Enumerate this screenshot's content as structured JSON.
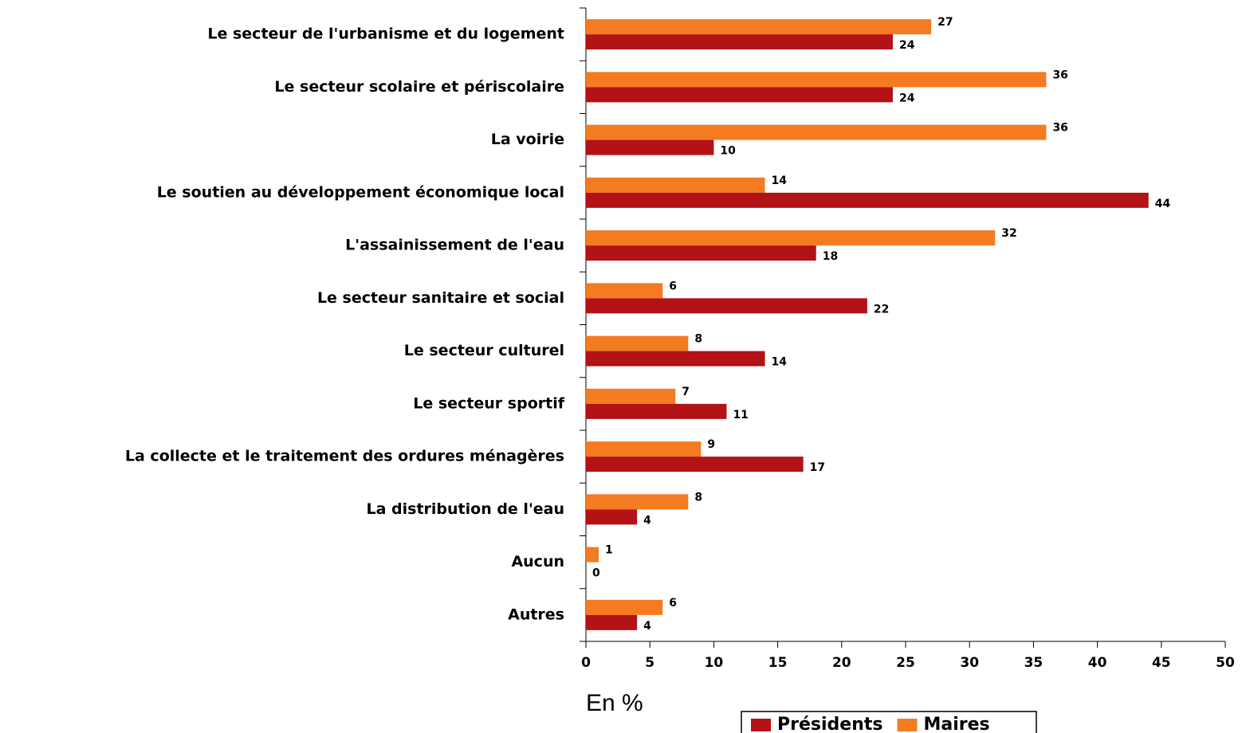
{
  "chart_data": {
    "type": "hbar",
    "xlabel": "En %",
    "categories": [
      "Le secteur de l'urbanisme et du logement",
      "Le secteur scolaire et périscolaire",
      "La voirie",
      "Le soutien au développement économique local",
      "L'assainissement de l'eau",
      "Le secteur sanitaire et social",
      "Le secteur culturel",
      "Le secteur sportif",
      "La collecte et le traitement des ordures ménagères",
      "La distribution de l'eau",
      "Aucun",
      "Autres"
    ],
    "series": [
      {
        "name": "Présidents",
        "color": "#b31217",
        "values": [
          24,
          24,
          10,
          44,
          18,
          22,
          14,
          11,
          17,
          4,
          0,
          4
        ]
      },
      {
        "name": "Maires",
        "color": "#f47b20",
        "values": [
          27,
          36,
          36,
          14,
          32,
          6,
          8,
          7,
          9,
          8,
          1,
          6
        ]
      }
    ],
    "xlim": [
      0,
      50
    ],
    "xticks": [
      0,
      5,
      10,
      15,
      20,
      25,
      30,
      35,
      40,
      45,
      50
    ],
    "legend": "bottom"
  }
}
